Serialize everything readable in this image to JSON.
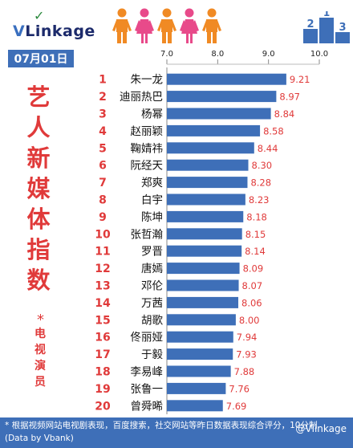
{
  "brand": {
    "logo_text": "VLinkage",
    "logo_mark": "✓"
  },
  "date": "07月01日",
  "title": {
    "main": "艺人新媒体指数",
    "star": "*",
    "sub": "电视演员"
  },
  "footnote": "* 根据视频网站电视剧表现，百度搜索，社交网站等昨日数据表现综合评分，10分制",
  "credit": "(Data by Vbank)",
  "watermark": "@Vlinkage",
  "colors": {
    "bar": "#3e6fb8",
    "rank": "#e03a3a",
    "value": "#e03a3a",
    "title": "#e03a3a",
    "footer": "#3e6fb8",
    "person_orange": "#f08a24",
    "person_pink": "#e84a8a"
  },
  "chart_data": {
    "type": "bar",
    "orientation": "horizontal",
    "xlim": [
      7.0,
      10.0
    ],
    "ticks": [
      "7.0",
      "8.0",
      "9.0",
      "10.0"
    ],
    "ranks": [
      "1",
      "2",
      "3",
      "4",
      "5",
      "6",
      "7",
      "8",
      "9",
      "10",
      "11",
      "12",
      "13",
      "14",
      "15",
      "16",
      "17",
      "18",
      "19",
      "20"
    ],
    "categories": [
      "朱一龙",
      "迪丽热巴",
      "杨幂",
      "赵丽颖",
      "鞠婧祎",
      "阮经天",
      "郑爽",
      "白宇",
      "陈坤",
      "张哲瀚",
      "罗晋",
      "唐嫣",
      "邓伦",
      "万茜",
      "胡歌",
      "佟丽娅",
      "于毅",
      "李易峰",
      "张鲁一",
      "曾舜晞"
    ],
    "values": [
      9.21,
      8.97,
      8.84,
      8.58,
      8.44,
      8.3,
      8.28,
      8.23,
      8.18,
      8.15,
      8.14,
      8.09,
      8.07,
      8.06,
      8.0,
      7.94,
      7.93,
      7.88,
      7.76,
      7.69
    ],
    "labels": [
      "9.21",
      "8.97",
      "8.84",
      "8.58",
      "8.44",
      "8.30",
      "8.28",
      "8.23",
      "8.18",
      "8.15",
      "8.14",
      "8.09",
      "8.07",
      "8.06",
      "8.00",
      "7.94",
      "7.93",
      "7.88",
      "7.76",
      "7.69"
    ]
  }
}
